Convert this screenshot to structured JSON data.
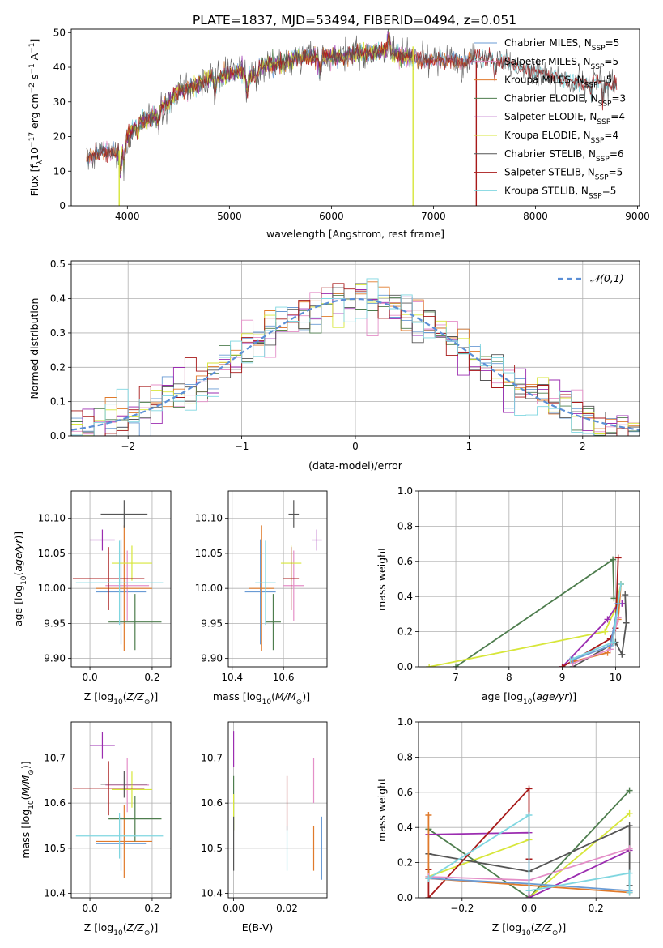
{
  "figure": {
    "title": "PLATE=1837, MJD=53494, FIBERID=0494, z=0.051"
  },
  "colors": {
    "Chabrier MILES": "#6a9bd4",
    "Salpeter MILES": "#e48fc8",
    "Kroupa MILES": "#e07a2b",
    "Chabrier ELODIE": "#4e7d4e",
    "Salpeter ELODIE": "#9b2db0",
    "Kroupa ELODIE": "#d7e63a",
    "Chabrier STELIB": "#555555",
    "Salpeter STELIB": "#a81a1a",
    "Kroupa STELIB": "#7fd6e0",
    "normal": "#5b8fd6"
  },
  "chart_data": [
    {
      "id": "spectrum",
      "type": "line",
      "xlabel": "wavelength [Angstrom, rest frame]",
      "ylabel": "Flux [f_λ 10^-17 erg cm^-2 s^-1 A^-1]",
      "xlim": [
        3450,
        9020
      ],
      "ylim": [
        0,
        51
      ],
      "xticks": [
        4000,
        5000,
        6000,
        7000,
        8000,
        9000
      ],
      "yticks": [
        0,
        10,
        20,
        30,
        40,
        50
      ],
      "legend_loc": "right",
      "legend": [
        {
          "name": "Chabrier MILES",
          "nssp": "5"
        },
        {
          "name": "Salpeter MILES",
          "nssp": "5"
        },
        {
          "name": "Kroupa MILES",
          "nssp": "5"
        },
        {
          "name": "Chabrier ELODIE",
          "nssp": "3"
        },
        {
          "name": "Salpeter ELODIE",
          "nssp": "4"
        },
        {
          "name": "Kroupa ELODIE",
          "nssp": "4"
        },
        {
          "name": "Chabrier STELIB",
          "nssp": "6"
        },
        {
          "name": "Salpeter STELIB",
          "nssp": "5"
        },
        {
          "name": "Kroupa STELIB",
          "nssp": "5"
        }
      ],
      "continuum": [
        [
          3600,
          14
        ],
        [
          3800,
          16
        ],
        [
          3900,
          15
        ],
        [
          4000,
          20
        ],
        [
          4100,
          24
        ],
        [
          4200,
          25
        ],
        [
          4300,
          27
        ],
        [
          4400,
          30
        ],
        [
          4500,
          33
        ],
        [
          4600,
          34
        ],
        [
          4700,
          35
        ],
        [
          4800,
          37
        ],
        [
          4900,
          37
        ],
        [
          5000,
          38
        ],
        [
          5100,
          39
        ],
        [
          5200,
          37
        ],
        [
          5300,
          40
        ],
        [
          5400,
          41
        ],
        [
          5500,
          41
        ],
        [
          5600,
          42
        ],
        [
          5700,
          43
        ],
        [
          5800,
          43
        ],
        [
          5900,
          43
        ],
        [
          6000,
          43
        ],
        [
          6100,
          43
        ],
        [
          6200,
          44
        ],
        [
          6300,
          44
        ],
        [
          6400,
          44
        ],
        [
          6500,
          45
        ],
        [
          6600,
          44
        ],
        [
          6700,
          43
        ],
        [
          6800,
          43
        ],
        [
          6900,
          42
        ],
        [
          7000,
          42
        ],
        [
          7100,
          42
        ],
        [
          7200,
          42
        ],
        [
          7300,
          41
        ],
        [
          7400,
          43
        ],
        [
          7500,
          43
        ],
        [
          7600,
          42
        ],
        [
          7700,
          42
        ],
        [
          7800,
          40
        ],
        [
          7900,
          39
        ],
        [
          8000,
          39
        ],
        [
          8100,
          38
        ],
        [
          8200,
          37
        ],
        [
          8300,
          36
        ],
        [
          8400,
          36
        ],
        [
          8500,
          36
        ],
        [
          8600,
          36
        ],
        [
          8700,
          35
        ],
        [
          8800,
          35
        ]
      ],
      "absorption_lines": [
        [
          3934,
          6
        ],
        [
          3969,
          6
        ],
        [
          4102,
          3
        ],
        [
          4300,
          3
        ],
        [
          4861,
          4
        ],
        [
          5175,
          5
        ],
        [
          5270,
          3
        ],
        [
          5890,
          4
        ],
        [
          6563,
          -5
        ],
        [
          7600,
          5
        ],
        [
          8542,
          4
        ],
        [
          8662,
          4
        ]
      ],
      "spikes": [
        {
          "series": "Kroupa ELODIE",
          "x": 3920,
          "ymin": 0,
          "ymax": 16
        },
        {
          "series": "Kroupa ELODIE",
          "x": 6800,
          "ymin": 0,
          "ymax": 46
        },
        {
          "series": "Salpeter STELIB",
          "x": 7420,
          "ymin": 0,
          "ymax": 42
        }
      ]
    },
    {
      "id": "residuals",
      "type": "histogram",
      "xlabel": "(data-model)/error",
      "ylabel": "Normed distribution",
      "xlim": [
        -2.5,
        2.5
      ],
      "ylim": [
        0,
        0.51
      ],
      "xticks": [
        -2,
        -1,
        0,
        1,
        2
      ],
      "yticks": [
        0.0,
        0.1,
        0.2,
        0.3,
        0.4,
        0.5
      ],
      "bin_width": 0.1,
      "legend_label": "𝒩(0,1)",
      "legend_loc": "upper right"
    },
    {
      "id": "age_vs_Z",
      "type": "scatter",
      "xlabel": "Z [log10(Z/Z⊙)]",
      "ylabel": "age  [log10(age/yr)]",
      "xlim": [
        -0.06,
        0.26
      ],
      "ylim": [
        9.888,
        10.139
      ],
      "xticks": [
        0.0,
        0.2
      ],
      "yticks": [
        9.9,
        9.95,
        10.0,
        10.05,
        10.1
      ],
      "points": [
        {
          "series": "Chabrier MILES",
          "x": 0.1,
          "xerr": 0.08,
          "y": 9.995,
          "yerr": 0.075
        },
        {
          "series": "Salpeter MILES",
          "x": 0.12,
          "xerr": 0.07,
          "y": 10.004,
          "yerr": 0.05
        },
        {
          "series": "Kroupa MILES",
          "x": 0.11,
          "xerr": 0.09,
          "y": 10.0,
          "yerr": 0.09
        },
        {
          "series": "Chabrier ELODIE",
          "x": 0.145,
          "xerr": 0.085,
          "y": 9.952,
          "yerr": 0.04
        },
        {
          "series": "Salpeter ELODIE",
          "x": 0.04,
          "xerr": 0.04,
          "y": 10.069,
          "yerr": 0.015
        },
        {
          "series": "Kroupa ELODIE",
          "x": 0.135,
          "xerr": 0.065,
          "y": 10.036,
          "yerr": 0.025
        },
        {
          "series": "Chabrier STELIB",
          "x": 0.11,
          "xerr": 0.075,
          "y": 10.106,
          "yerr": 0.02
        },
        {
          "series": "Salpeter STELIB",
          "x": 0.06,
          "xerr": 0.115,
          "y": 10.014,
          "yerr": 0.045
        },
        {
          "series": "Kroupa STELIB",
          "x": 0.095,
          "xerr": 0.14,
          "y": 10.008,
          "yerr": 0.06
        }
      ]
    },
    {
      "id": "age_vs_mass",
      "type": "scatter",
      "xlabel": "mass [log10(M/M⊙)]",
      "ylabel": "",
      "xlim": [
        10.385,
        10.77
      ],
      "ylim": [
        9.888,
        10.139
      ],
      "xticks": [
        10.4,
        10.6
      ],
      "yticks": [
        9.9,
        9.95,
        10.0,
        10.05,
        10.1
      ],
      "points": [
        {
          "series": "Chabrier MILES",
          "x": 10.51,
          "xerr": 0.06,
          "y": 9.995,
          "yerr": 0.075
        },
        {
          "series": "Salpeter MILES",
          "x": 10.64,
          "xerr": 0.04,
          "y": 10.004,
          "yerr": 0.05
        },
        {
          "series": "Kroupa MILES",
          "x": 10.515,
          "xerr": 0.05,
          "y": 10.0,
          "yerr": 0.09
        },
        {
          "series": "Chabrier ELODIE",
          "x": 10.56,
          "xerr": 0.03,
          "y": 9.952,
          "yerr": 0.04
        },
        {
          "series": "Salpeter ELODIE",
          "x": 10.73,
          "xerr": 0.02,
          "y": 10.069,
          "yerr": 0.015
        },
        {
          "series": "Kroupa ELODIE",
          "x": 10.63,
          "xerr": 0.04,
          "y": 10.036,
          "yerr": 0.025
        },
        {
          "series": "Chabrier STELIB",
          "x": 10.64,
          "xerr": 0.02,
          "y": 10.106,
          "yerr": 0.02
        },
        {
          "series": "Salpeter STELIB",
          "x": 10.63,
          "xerr": 0.03,
          "y": 10.014,
          "yerr": 0.045
        },
        {
          "series": "Kroupa STELIB",
          "x": 10.53,
          "xerr": 0.04,
          "y": 10.008,
          "yerr": 0.06
        }
      ]
    },
    {
      "id": "weight_vs_age",
      "type": "line",
      "xlabel": "age  [log10(age/yr)]",
      "ylabel": "mass weight",
      "xlim": [
        6.3,
        10.45
      ],
      "ylim": [
        0,
        1.0
      ],
      "xticks": [
        7,
        8,
        9,
        10
      ],
      "yticks": [
        0.0,
        0.2,
        0.4,
        0.6,
        0.8,
        1.0
      ],
      "series": [
        {
          "name": "Chabrier ELODIE",
          "points": [
            [
              7.0,
              0.0
            ],
            [
              9.95,
              0.61
            ],
            [
              9.97,
              0.39
            ]
          ]
        },
        {
          "name": "Kroupa ELODIE",
          "points": [
            [
              6.5,
              0.0
            ],
            [
              9.8,
              0.2
            ],
            [
              10.0,
              0.33
            ],
            [
              10.1,
              0.47
            ]
          ]
        },
        {
          "name": "Salpeter ELODIE",
          "points": [
            [
              9.0,
              0.0
            ],
            [
              9.85,
              0.27
            ],
            [
              10.05,
              0.36
            ],
            [
              10.12,
              0.36
            ]
          ]
        },
        {
          "name": "Salpeter STELIB",
          "points": [
            [
              9.0,
              0.0
            ],
            [
              9.9,
              0.16
            ],
            [
              10.0,
              0.22
            ],
            [
              10.05,
              0.62
            ]
          ]
        },
        {
          "name": "Chabrier STELIB",
          "points": [
            [
              9.2,
              0.0
            ],
            [
              10.0,
              0.14
            ],
            [
              10.12,
              0.07
            ],
            [
              10.2,
              0.25
            ],
            [
              10.18,
              0.41
            ]
          ]
        },
        {
          "name": "Kroupa MILES",
          "points": [
            [
              9.2,
              0.03
            ],
            [
              9.85,
              0.08
            ],
            [
              10.05,
              0.27
            ],
            [
              10.1,
              0.47
            ]
          ]
        },
        {
          "name": "Salpeter MILES",
          "points": [
            [
              9.2,
              0.02
            ],
            [
              9.9,
              0.1
            ],
            [
              10.05,
              0.28
            ]
          ]
        },
        {
          "name": "Chabrier MILES",
          "points": [
            [
              9.2,
              0.04
            ],
            [
              9.9,
              0.12
            ],
            [
              10.05,
              0.36
            ]
          ]
        },
        {
          "name": "Kroupa STELIB",
          "points": [
            [
              9.15,
              0.04
            ],
            [
              9.95,
              0.14
            ],
            [
              10.1,
              0.47
            ]
          ]
        }
      ]
    },
    {
      "id": "mass_vs_Z",
      "type": "scatter",
      "xlabel": "Z [log10(Z/Z⊙)]",
      "ylabel": "mass [log10(M/M⊙)]",
      "xlim": [
        -0.06,
        0.26
      ],
      "ylim": [
        10.39,
        10.78
      ],
      "xticks": [
        0.0,
        0.2
      ],
      "yticks": [
        10.4,
        10.5,
        10.6,
        10.7
      ],
      "points": [
        {
          "series": "Chabrier MILES",
          "x": 0.1,
          "xerr": 0.08,
          "y": 10.51,
          "yerr": 0.06
        },
        {
          "series": "Salpeter MILES",
          "x": 0.12,
          "xerr": 0.07,
          "y": 10.64,
          "yerr": 0.06
        },
        {
          "series": "Kroupa MILES",
          "x": 0.11,
          "xerr": 0.09,
          "y": 10.515,
          "yerr": 0.08
        },
        {
          "series": "Chabrier ELODIE",
          "x": 0.145,
          "xerr": 0.085,
          "y": 10.565,
          "yerr": 0.05
        },
        {
          "series": "Salpeter ELODIE",
          "x": 0.04,
          "xerr": 0.04,
          "y": 10.728,
          "yerr": 0.03
        },
        {
          "series": "Kroupa ELODIE",
          "x": 0.135,
          "xerr": 0.065,
          "y": 10.63,
          "yerr": 0.04
        },
        {
          "series": "Chabrier STELIB",
          "x": 0.11,
          "xerr": 0.075,
          "y": 10.642,
          "yerr": 0.03
        },
        {
          "series": "Salpeter STELIB",
          "x": 0.06,
          "xerr": 0.115,
          "y": 10.633,
          "yerr": 0.06
        },
        {
          "series": "Kroupa STELIB",
          "x": 0.095,
          "xerr": 0.14,
          "y": 10.527,
          "yerr": 0.05
        }
      ]
    },
    {
      "id": "mass_vs_ebv",
      "type": "scatter",
      "xlabel": "E(B-V)",
      "ylabel": "",
      "xlim": [
        -0.002,
        0.035
      ],
      "ylim": [
        10.39,
        10.78
      ],
      "xticks": [
        0.0,
        0.02
      ],
      "yticks": [
        10.4,
        10.5,
        10.6,
        10.7
      ],
      "points": [
        {
          "series": "Chabrier MILES",
          "x": 0.033,
          "y": 10.5,
          "yerr": 0.07
        },
        {
          "series": "Salpeter MILES",
          "x": 0.03,
          "y": 10.65,
          "yerr": 0.05
        },
        {
          "series": "Kroupa MILES",
          "x": 0.03,
          "y": 10.5,
          "yerr": 0.05
        },
        {
          "series": "Chabrier ELODIE",
          "x": 0.0,
          "y": 10.6,
          "yerr": 0.06
        },
        {
          "series": "Salpeter ELODIE",
          "x": 0.0,
          "y": 10.72,
          "yerr": 0.04
        },
        {
          "series": "Kroupa ELODIE",
          "x": 0.0,
          "y": 10.58,
          "yerr": 0.04
        },
        {
          "series": "Chabrier STELIB",
          "x": 0.0,
          "y": 10.51,
          "yerr": 0.06
        },
        {
          "series": "Salpeter STELIB",
          "x": 0.02,
          "y": 10.6,
          "yerr": 0.06
        },
        {
          "series": "Kroupa STELIB",
          "x": 0.02,
          "y": 10.5,
          "yerr": 0.05
        }
      ]
    },
    {
      "id": "weight_vs_Z",
      "type": "line",
      "xlabel": "Z [log10(Z/Z⊙)]",
      "ylabel": "mass weight",
      "xlim": [
        -0.33,
        0.33
      ],
      "ylim": [
        0,
        1.0
      ],
      "xticks": [
        -0.2,
        0.0,
        0.2
      ],
      "yticks": [
        0.0,
        0.2,
        0.4,
        0.6,
        0.8,
        1.0
      ],
      "series": [
        {
          "name": "Chabrier ELODIE",
          "points": [
            [
              -0.3,
              0.39
            ],
            [
              0.0,
              0.0
            ],
            [
              0.3,
              0.61
            ]
          ]
        },
        {
          "name": "Kroupa ELODIE",
          "points": [
            [
              -0.3,
              0.12
            ],
            [
              0.0,
              0.33
            ],
            [
              0.0,
              0.0
            ],
            [
              0.3,
              0.48
            ]
          ]
        },
        {
          "name": "Salpeter ELODIE",
          "points": [
            [
              -0.3,
              0.36
            ],
            [
              0.0,
              0.37
            ],
            [
              0.0,
              0.0
            ],
            [
              0.3,
              0.27
            ]
          ]
        },
        {
          "name": "Salpeter STELIB",
          "points": [
            [
              -0.3,
              0.16
            ],
            [
              -0.3,
              0.0
            ],
            [
              0.0,
              0.62
            ],
            [
              0.0,
              0.22
            ]
          ]
        },
        {
          "name": "Chabrier STELIB",
          "points": [
            [
              -0.3,
              0.25
            ],
            [
              0.0,
              0.15
            ],
            [
              0.3,
              0.41
            ],
            [
              0.3,
              0.07
            ]
          ]
        },
        {
          "name": "Kroupa MILES",
          "points": [
            [
              -0.3,
              0.47
            ],
            [
              -0.3,
              0.11
            ],
            [
              0.0,
              0.07
            ],
            [
              0.3,
              0.03
            ]
          ]
        },
        {
          "name": "Salpeter MILES",
          "points": [
            [
              -0.3,
              0.12
            ],
            [
              0.0,
              0.1
            ],
            [
              0.3,
              0.28
            ]
          ]
        },
        {
          "name": "Chabrier MILES",
          "points": [
            [
              -0.3,
              0.11
            ],
            [
              0.0,
              0.08
            ],
            [
              0.3,
              0.04
            ]
          ]
        },
        {
          "name": "Kroupa STELIB",
          "points": [
            [
              -0.3,
              0.11
            ],
            [
              0.0,
              0.47
            ],
            [
              0.0,
              0.04
            ],
            [
              0.3,
              0.14
            ],
            [
              0.3,
              0.03
            ]
          ]
        }
      ]
    }
  ]
}
